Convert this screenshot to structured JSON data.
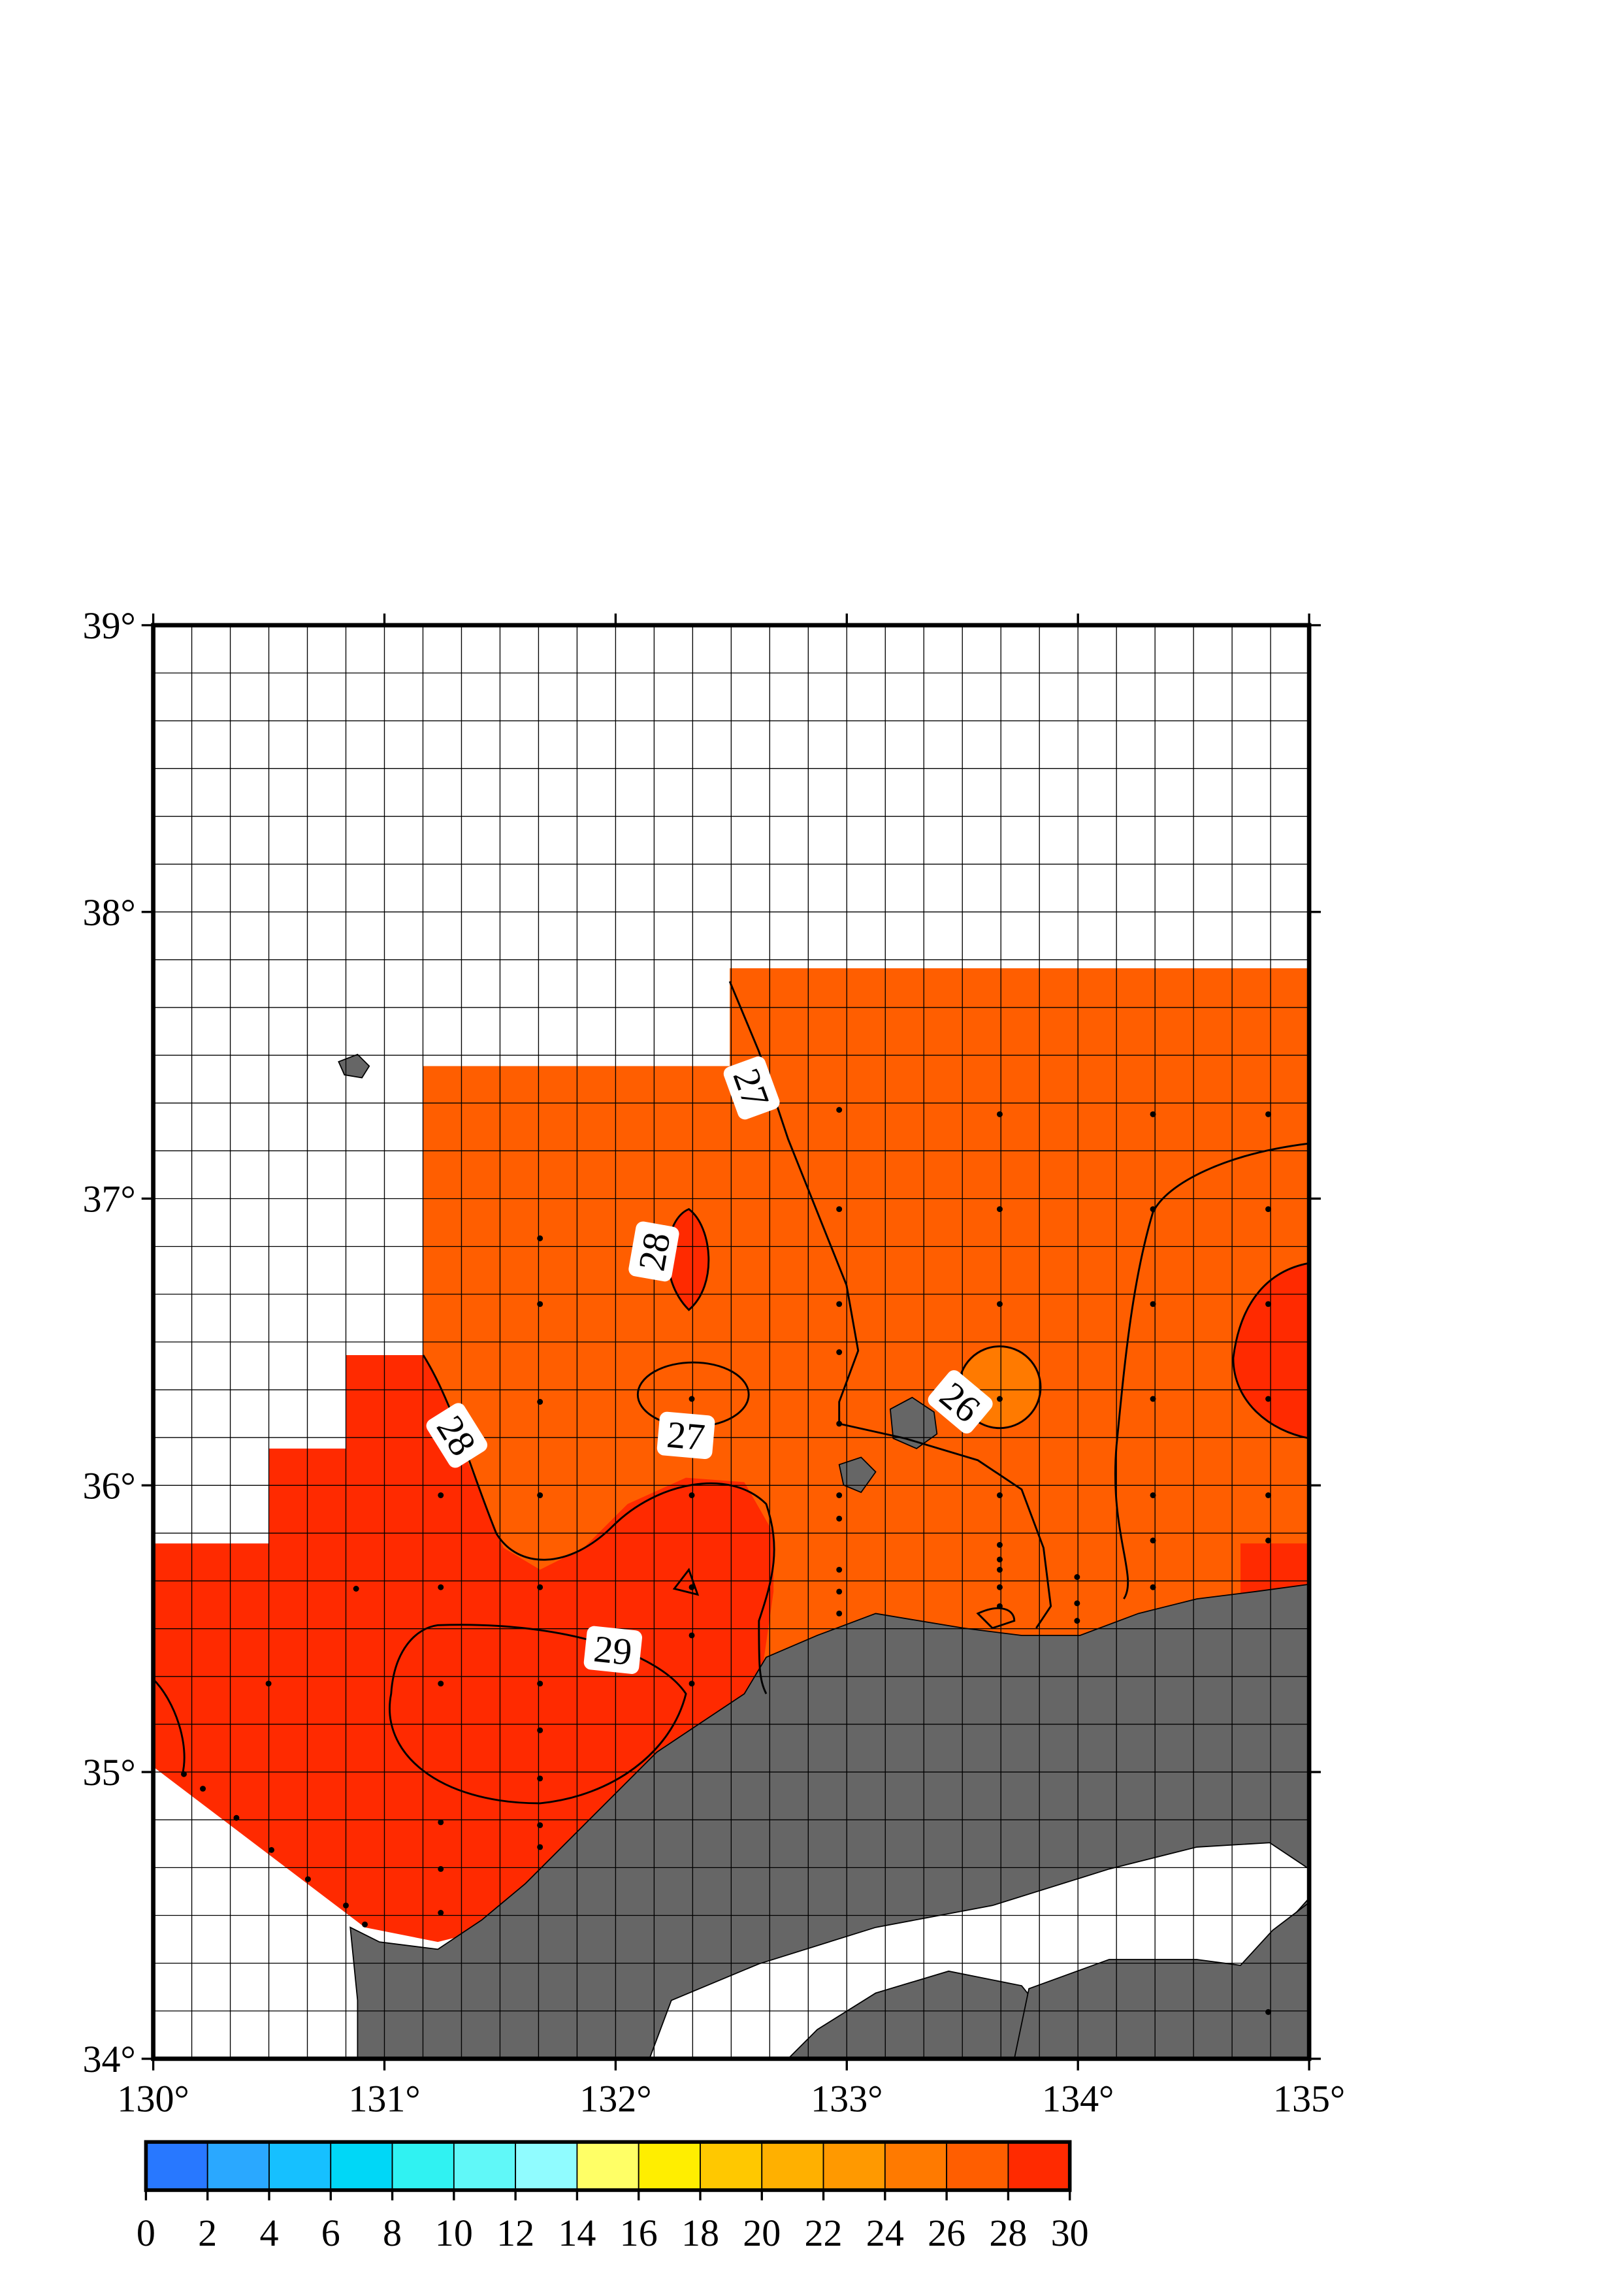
{
  "map": {
    "lon_range": [
      130,
      135
    ],
    "lat_range": [
      34,
      39
    ],
    "lon_ticks": [
      {
        "value": 130,
        "label": "130°"
      },
      {
        "value": 131,
        "label": "131°"
      },
      {
        "value": 132,
        "label": "132°"
      },
      {
        "value": 133,
        "label": "133°"
      },
      {
        "value": 134,
        "label": "134°"
      },
      {
        "value": 135,
        "label": "135°"
      }
    ],
    "lat_ticks": [
      {
        "value": 34,
        "label": "34°"
      },
      {
        "value": 35,
        "label": "35°"
      },
      {
        "value": 36,
        "label": "36°"
      },
      {
        "value": 37,
        "label": "37°"
      },
      {
        "value": 38,
        "label": "38°"
      },
      {
        "value": 39,
        "label": "39°"
      }
    ],
    "contour_labels": [
      27,
      28,
      28,
      27,
      29,
      26
    ],
    "colorbar": {
      "ticks": [
        0,
        2,
        4,
        6,
        8,
        10,
        12,
        14,
        16,
        18,
        20,
        22,
        24,
        26,
        28,
        30
      ],
      "colors": [
        "#2878ff",
        "#2aa8ff",
        "#16c0ff",
        "#00d7f7",
        "#30f2f2",
        "#60f8f8",
        "#90fcff",
        "#ffff66",
        "#ffee00",
        "#ffc800",
        "#ffb000",
        "#ff9900",
        "#ff7a00",
        "#ff5e00",
        "#ff2a00"
      ]
    }
  }
}
